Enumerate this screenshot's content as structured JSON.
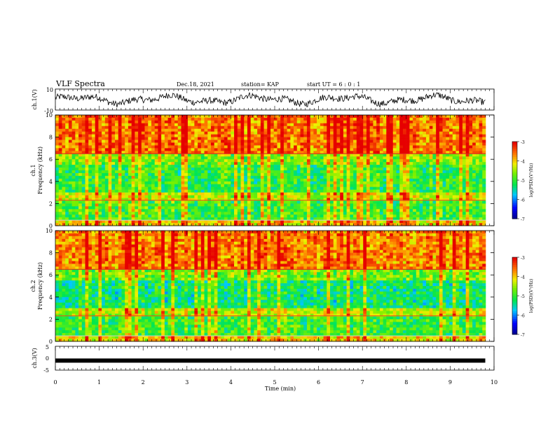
{
  "header": {
    "title": "VLF Spectra",
    "date": "Dec.18, 2021",
    "station": "station= KAP",
    "start_ut": "start  UT =  6 : 0  : 1"
  },
  "chart_data": [
    {
      "type": "line",
      "panel": "ch1-waveform",
      "ylabel": "ch.1(V)",
      "ylim": [
        -10,
        10
      ],
      "yticks": [
        "10",
        "-10"
      ],
      "xlim": [
        0,
        10
      ],
      "series": [
        {
          "values_desc": "",
          "x": [],
          "values": []
        }
      ]
    },
    {
      "type": "heatmap",
      "panel": "ch1-spectrogram",
      "ylabel": "ch.1\nFrequency (kHz)",
      "ylabel_line1": "ch.1",
      "ylabel_line2": "Frequency (kHz)",
      "ylim": [
        0,
        10
      ],
      "yticks": [
        "0",
        "2",
        "4",
        "6",
        "8",
        "10"
      ],
      "xlim": [
        0,
        9.8
      ],
      "colorbar": {
        "label": "log(PSD)(V²/Hz)",
        "range": [
          -7,
          -3
        ],
        "ticks": [
          "-3",
          "-4",
          "-5",
          "-6",
          "-7"
        ]
      }
    },
    {
      "type": "heatmap",
      "panel": "ch2-spectrogram",
      "ylabel_line1": "ch.2",
      "ylabel_line2": "Frequency (kHz)",
      "ylim": [
        0,
        10
      ],
      "yticks": [
        "0",
        "2",
        "4",
        "6",
        "8",
        "10"
      ],
      "xlim": [
        0,
        9.8
      ],
      "colorbar": {
        "label": "log(PSD)(V²/Hz)",
        "range": [
          -7,
          -3
        ],
        "ticks": [
          "-3",
          "-4",
          "-5",
          "-6",
          "-7"
        ]
      }
    },
    {
      "type": "line",
      "panel": "ch3-waveform",
      "ylabel": "ch.3(V)",
      "ylim": [
        -5,
        5
      ],
      "yticks": [
        "5",
        "0",
        "-5"
      ],
      "xlim": [
        0,
        10
      ],
      "series": [
        {
          "x": [
            0,
            9.8
          ],
          "values": [
            -1,
            -1
          ]
        }
      ]
    }
  ],
  "xaxis": {
    "label": "Time (min)",
    "ticks": [
      "0",
      "1",
      "2",
      "3",
      "4",
      "5",
      "6",
      "7",
      "8",
      "9",
      "10"
    ]
  }
}
